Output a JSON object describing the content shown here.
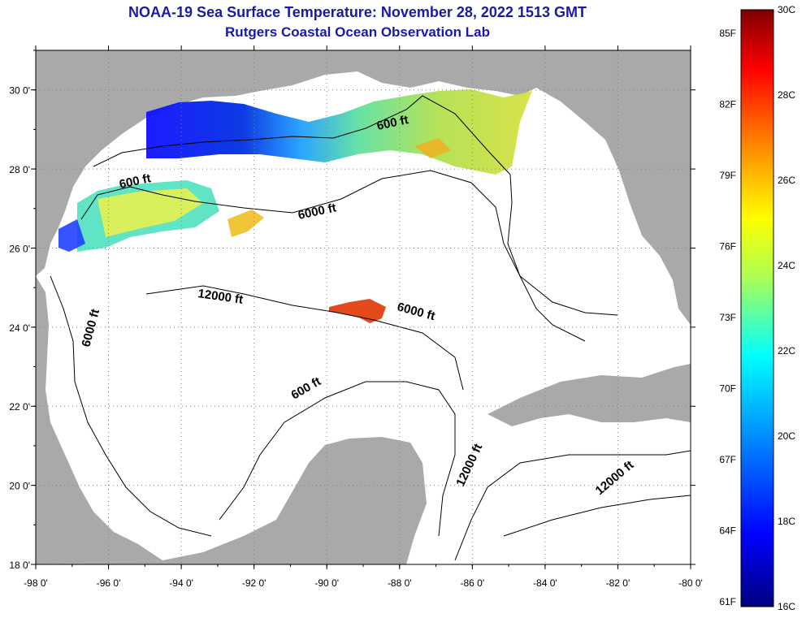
{
  "title_line1": "NOAA-19 Sea Surface Temperature:  November 28, 2022 1513 GMT",
  "title_line2": "Rutgers Coastal Ocean Observation Lab",
  "colors": {
    "land": "#a9a9a9",
    "water": "#ffffff",
    "title": "#1a1aa6",
    "grid": "#808080"
  },
  "chart_data": {
    "type": "heatmap",
    "x_axis_labels": [
      "-98 0'",
      "-96 0'",
      "-94 0'",
      "-92 0'",
      "-90 0'",
      "-88 0'",
      "-86 0'",
      "-84 0'",
      "-82 0'",
      "-80 0'"
    ],
    "y_axis_labels": [
      "30 0'",
      "28 0'",
      "26 0'",
      "24 0'",
      "22 0'",
      "20 0'",
      "18 0'"
    ],
    "xlim": [
      -98,
      -80
    ],
    "ylim": [
      18,
      31
    ],
    "grid": true,
    "colorbar": {
      "celsius_labels": [
        "30C",
        "28C",
        "26C",
        "24C",
        "22C",
        "20C",
        "18C",
        "16C"
      ],
      "fahrenheit_labels": [
        "85F",
        "82F",
        "79F",
        "76F",
        "73F",
        "70F",
        "67F",
        "64F",
        "61F"
      ],
      "range_c": [
        16,
        30
      ],
      "placement": "right"
    },
    "contour_labels": [
      "600 ft",
      "600 ft",
      "6000 ft",
      "6000 ft",
      "6000 ft",
      "12000 ft",
      "600 ft",
      "12000 ft",
      "12000 ft"
    ]
  }
}
